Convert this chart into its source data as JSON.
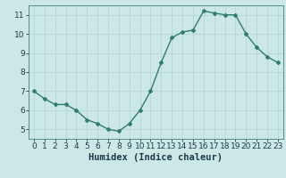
{
  "x": [
    0,
    1,
    2,
    3,
    4,
    5,
    6,
    7,
    8,
    9,
    10,
    11,
    12,
    13,
    14,
    15,
    16,
    17,
    18,
    19,
    20,
    21,
    22,
    23
  ],
  "y": [
    7.0,
    6.6,
    6.3,
    6.3,
    6.0,
    5.5,
    5.3,
    5.0,
    4.9,
    5.3,
    6.0,
    7.0,
    8.5,
    9.8,
    10.1,
    10.2,
    11.2,
    11.1,
    11.0,
    11.0,
    10.0,
    9.3,
    8.8,
    8.5
  ],
  "line_color": "#2e7d6e",
  "bg_color": "#cce8e6",
  "grid_color": "#b8d8d6",
  "xlabel": "Humidex (Indice chaleur)",
  "xlabel_color": "#1a3a4a",
  "tick_color": "#1a3a4a",
  "spine_color": "#5a8a8a",
  "ylim": [
    4.5,
    11.5
  ],
  "xlim": [
    -0.5,
    23.5
  ],
  "yticks": [
    5,
    6,
    7,
    8,
    9,
    10,
    11
  ],
  "xticks": [
    0,
    1,
    2,
    3,
    4,
    5,
    6,
    7,
    8,
    9,
    10,
    11,
    12,
    13,
    14,
    15,
    16,
    17,
    18,
    19,
    20,
    21,
    22,
    23
  ],
  "marker": "D",
  "marker_size": 2.0,
  "line_width": 1.0,
  "xlabel_fontsize": 7.5,
  "tick_fontsize": 6.5
}
